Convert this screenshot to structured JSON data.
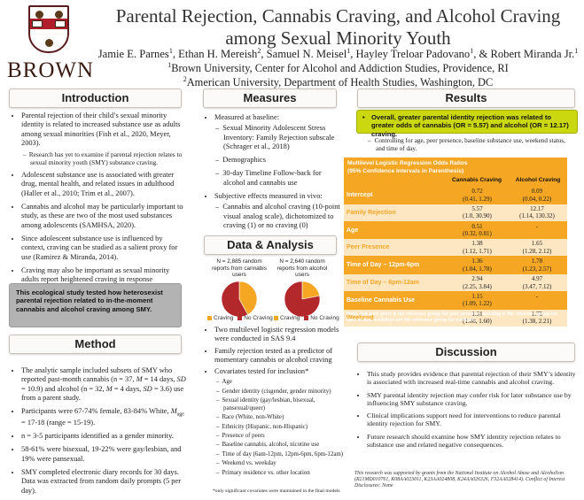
{
  "header": {
    "title_line1": "Parental Rejection, Cannabis Craving, and Alcohol Craving",
    "title_line2": "among Sexual Minority Youth",
    "authors": [
      {
        "name": "Jamie E. Parnes",
        "sup": "1"
      },
      {
        "name": "Ethan H. Mereish",
        "sup": "2"
      },
      {
        "name": "Samuel N. Meisel",
        "sup": "1"
      },
      {
        "name": "Hayley Treloar Padovano",
        "sup": "1"
      },
      {
        "name": "Robert Miranda Jr.",
        "sup": "1"
      }
    ],
    "affiliations": [
      {
        "sup": "1",
        "text": "Brown University, Center for Alcohol and Addiction Studies, Providence, RI"
      },
      {
        "sup": "2",
        "text": "American University, Department of Health Studies, Washington, DC"
      }
    ],
    "logo_word": "BROWN",
    "logo_icon": "brown-university-shield-icon"
  },
  "introduction": {
    "heading": "Introduction",
    "bullets": [
      {
        "text": "Parental rejection of their child’s sexual minority identity is related to increased substance use as adults among sexual minorities (Fish et al., 2020, Meyer, 2003).",
        "sub": [
          "Research has yet to examine if parental rejection relates to sexual minority youth (SMY) substance craving."
        ]
      },
      {
        "text": "Adolescent substance use is associated with greater drug, mental health, and related issues in adulthood (Haller et al., 2010; Trim et al., 2007)."
      },
      {
        "text": "Cannabis and alcohol may be particularly important to study, as these are two of the most used substances among adolescents (SAMHSA, 2020)."
      },
      {
        "text": "Since adolescent substance use is influenced by context, craving can be studied as a salient proxy for use (Ramirez & Miranda, 2014)."
      },
      {
        "text": "Craving may also be important as sexual minority adults report heightened craving in response heterosexist stigma (Mereish & Miranda, 2019)."
      }
    ],
    "callout": "This ecological study tested how heterosexist parental rejection related to in-the-moment cannabis and alcohol craving among SMY."
  },
  "method": {
    "heading": "Method",
    "b1_pre": "The analytic sample included subsets of SMY who reported past-month cannabis (n = 37, ",
    "b1_m1": "M",
    "b1_mid1": " = 14 days, ",
    "b1_sd1": "SD",
    "b1_mid2": " = 10.9) and alcohol (n = 32, ",
    "b1_m2": "M",
    "b1_mid3": " = 4 days, ",
    "b1_sd2": "SD",
    "b1_post": " = 3.6) use from a parent study.",
    "b2_pre": "Participants were 67-74% female, 83-84% White, ",
    "b2_mage": "M",
    "b2_age_sub": "age",
    "b2_post": " = 17-18 (range = 15-19).",
    "bullets_rest": [
      "n = 3-5 participants identified as a gender minority.",
      "58-61% were bisexual, 19-22% were gay/lesbian, and 19% were pansexual.",
      "SMY completed electronic diary records for 30 days. Data was extracted from random daily prompts (5 per day)."
    ]
  },
  "measures": {
    "heading": "Measures",
    "bullets": [
      {
        "text": "Measured at baseline:",
        "sub": [
          "Sexual Minority Adolescent Stress Inventory: Family Rejection subscale (Schrager et al., 2018)",
          "Demographics",
          "30-day Timeline Follow-back for alcohol and cannabis use"
        ]
      },
      {
        "text": "Subjective effects measured in vivo:",
        "sub": [
          "Cannabis and alcohol craving (10-point visual analog scale), dichotomized to craving (1) or no craving (0)"
        ]
      }
    ]
  },
  "data_analysis": {
    "heading": "Data & Analysis",
    "bullets_top": [
      "Two multilevel logistic regression models were conducted in SAS 9.4",
      "Family rejection tested as a predictor of momentary cannabis or alcohol craving"
    ],
    "covariates_label": "Covariates tested for inclusion*",
    "covariates": [
      "Age",
      "Gender identity (cisgender, gender minority)",
      "Sexual identity (gay/lesbian, bisexual, pansexual/queer)",
      "Race (White, non-White)",
      "Ethnicity (Hispanic, non-Hispanic)",
      "Presence of peers",
      "Baseline cannabis, alcohol, nicotine use",
      "Time of day (6am-12pm, 12pm-6pm, 6pm-12am)",
      "Weekend vs. weekday",
      "Primary residence vs. other location"
    ],
    "footnote": "*only significant covariates were maintained in the final models"
  },
  "chart_data": [
    {
      "type": "pie",
      "title": "N = 2,885 random reports from cannabis users",
      "categories": [
        "Craving",
        "No Craving"
      ],
      "values": [
        0.42,
        0.58
      ],
      "colors": [
        "#f5a623",
        "#b3292b"
      ]
    },
    {
      "type": "pie",
      "title": "N = 2,640 random reports from alcohol users",
      "categories": [
        "Craving",
        "No Craving"
      ],
      "values": [
        0.22,
        0.78
      ],
      "colors": [
        "#f5a623",
        "#b3292b"
      ]
    }
  ],
  "results": {
    "heading": "Results",
    "callout": "Overall, greater parental identity rejection was related to greater odds of cannabis (OR = 5.57) and alcohol (OR = 12.17) craving.",
    "sub": "Controlling for age, peer presence, baseline substance use, weekend status, and time of day.",
    "table": {
      "title_line1": "Multilevel Logistic Regression Odds Ratios",
      "title_line2": "(95% Confidence Intervals in Parenthesis)",
      "col1": "Cannabis Craving",
      "col2": "Alcohol Craving",
      "rows": [
        {
          "label": "Intercept",
          "c1": "0.72",
          "c1ci": "(0.41, 1.29)",
          "c2": "0.09",
          "c2ci": "(0.04, 0.22)"
        },
        {
          "label": "Family Rejection",
          "c1": "5.57",
          "c1ci": "(1.0, 30.90)",
          "c2": "12.17",
          "c2ci": "(1.14, 130.32)"
        },
        {
          "label": "Age",
          "c1": "0.51",
          "c1ci": "(0.32, 0.81)",
          "c2": "-",
          "c2ci": ""
        },
        {
          "label": "Peer Presence",
          "c1": "1.38",
          "c1ci": "(1.12, 1.71)",
          "c2": "1.65",
          "c2ci": "(1.28, 2.12)"
        },
        {
          "label": "Time of Day – 12pm-6pm",
          "c1": "1.36",
          "c1ci": "(1.04, 1.78)",
          "c2": "1.78",
          "c2ci": "(1.23, 2.57)"
        },
        {
          "label": "Time of Day – 6pm-12am",
          "c1": "2.94",
          "c1ci": "(2.25, 3.84)",
          "c2": "4.97",
          "c2ci": "(3.47, 7.12)"
        },
        {
          "label": "Baseline Cannabis Use",
          "c1": "1.15",
          "c1ci": "(1.09, 1.22)",
          "c2": "-",
          "c2ci": ""
        },
        {
          "label": "Weekend",
          "c1": "1.31",
          "c1ci": "(1.08, 1.60)",
          "c2": "1.75",
          "c2ci": "(1.38, 2.21)"
        }
      ],
      "note": "Note: Not with peers is the reference group for peer presence, morning is the reference group for time of day, weekdays are the reference group for weekend."
    }
  },
  "discussion": {
    "heading": "Discussion",
    "bullets": [
      "This study provides evidence that parental rejection of their SMY’s identity is associated with increased real-time cannabis and alcohol craving.",
      "SMY parental identity rejection may confer risk for later substance use by influencing SMY substance craving.",
      "Clinical implications support need for interventions to reduce parental identity rejection for SMY.",
      "Future research should examine how SMY identity rejection relates to substance use and related negative consequences."
    ],
    "grant": "This research was supported by grants from the National Institute on Alcohol Abuse and Alcoholism (R21MD010761, K08AA023011, K23AA024808, K24AA026326, F32AA028414). Conflict of Interest Disclosures: None"
  }
}
